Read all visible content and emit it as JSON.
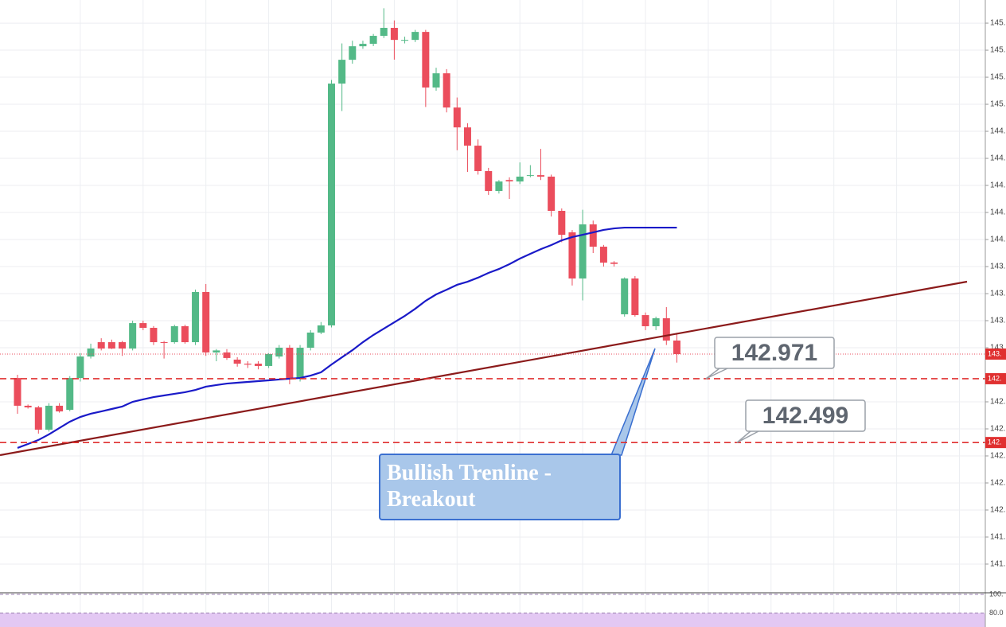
{
  "chart_data": {
    "type": "candlestick",
    "categories": [
      null,
      null,
      null,
      null,
      null,
      null,
      null,
      null,
      null,
      null,
      null,
      null,
      null,
      null,
      null,
      null,
      null,
      null,
      null,
      null,
      null,
      null,
      null,
      null,
      null,
      null,
      null,
      null,
      null,
      null,
      null,
      null,
      null,
      null,
      null,
      null,
      null,
      null,
      null,
      null,
      null,
      null,
      null,
      null,
      null,
      null,
      null,
      null,
      null,
      null,
      null,
      null,
      null,
      null,
      null,
      null,
      null,
      null,
      null,
      null,
      null,
      null,
      null,
      null
    ],
    "open": [
      142.976,
      142.771,
      142.759,
      142.594,
      142.771,
      142.741,
      142.976,
      143.135,
      143.241,
      143.241,
      143.241,
      143.194,
      143.382,
      143.347,
      143.241,
      143.241,
      143.359,
      143.241,
      143.612,
      143.165,
      143.165,
      143.112,
      143.082,
      143.082,
      143.065,
      143.135,
      143.2,
      142.971,
      143.2,
      143.312,
      143.365,
      145.153,
      145.329,
      145.429,
      145.447,
      145.506,
      145.565,
      145.47,
      145.476,
      145.535,
      145.124,
      145.229,
      144.976,
      144.829,
      144.694,
      144.506,
      144.359,
      144.44,
      144.429,
      144.47,
      144.476,
      144.465,
      144.212,
      144.053,
      143.712,
      144.112,
      143.947,
      143.83,
      143.447,
      143.712,
      143.441,
      143.359,
      143.418,
      143.253
    ],
    "high": [
      143.0,
      142.78,
      142.77,
      142.79,
      142.79,
      142.99,
      143.16,
      143.23,
      143.27,
      143.26,
      143.25,
      143.4,
      143.4,
      143.36,
      143.25,
      143.37,
      143.37,
      143.63,
      143.671,
      143.19,
      143.19,
      143.13,
      143.1,
      143.1,
      143.16,
      143.22,
      143.22,
      143.22,
      143.33,
      143.39,
      145.18,
      145.45,
      145.47,
      145.47,
      145.52,
      145.71,
      145.62,
      145.5,
      145.55,
      145.55,
      145.27,
      145.26,
      145.05,
      144.86,
      144.74,
      144.53,
      144.44,
      144.46,
      144.57,
      144.55,
      144.67,
      144.48,
      144.23,
      144.07,
      144.22,
      144.14,
      143.96,
      143.84,
      143.72,
      143.73,
      143.46,
      143.43,
      143.5,
      143.31
    ],
    "low": [
      142.712,
      142.75,
      142.565,
      142.58,
      142.72,
      142.73,
      142.95,
      143.12,
      143.18,
      143.19,
      143.14,
      143.18,
      143.33,
      143.22,
      143.12,
      143.23,
      143.23,
      143.22,
      143.14,
      143.1,
      143.11,
      143.06,
      143.05,
      143.04,
      143.05,
      143.12,
      142.93,
      142.95,
      143.18,
      143.3,
      143.35,
      144.95,
      145.3,
      145.41,
      145.43,
      145.49,
      145.33,
      145.45,
      145.46,
      144.98,
      145.1,
      144.94,
      144.66,
      144.5,
      144.48,
      144.33,
      144.34,
      144.3,
      144.41,
      144.46,
      144.44,
      144.17,
      143.98,
      143.66,
      143.55,
      143.9,
      143.8,
      143.8,
      143.43,
      143.43,
      143.33,
      143.33,
      143.22,
      143.09
    ],
    "close": [
      142.771,
      142.759,
      142.594,
      142.771,
      142.729,
      142.976,
      143.135,
      143.194,
      143.194,
      143.194,
      143.194,
      143.382,
      143.347,
      143.241,
      143.235,
      143.359,
      143.241,
      143.612,
      143.165,
      143.18,
      143.124,
      143.082,
      143.075,
      143.065,
      143.153,
      143.2,
      142.971,
      143.2,
      143.312,
      143.365,
      145.153,
      145.329,
      145.429,
      145.447,
      145.506,
      145.565,
      145.476,
      145.476,
      145.535,
      145.124,
      145.229,
      144.976,
      144.829,
      144.694,
      144.506,
      144.359,
      144.429,
      144.43,
      144.465,
      144.476,
      144.465,
      144.212,
      144.035,
      143.712,
      144.112,
      143.947,
      143.829,
      143.82,
      143.712,
      143.441,
      143.359,
      143.418,
      143.253,
      143.153
    ],
    "up_color": "#53b987",
    "down_color": "#eb4d5c",
    "moving_average": {
      "color": "#1a1ac8",
      "values": [
        142.459,
        142.488,
        142.518,
        142.559,
        142.606,
        142.653,
        142.688,
        142.712,
        142.729,
        142.747,
        142.765,
        142.8,
        142.818,
        142.835,
        142.847,
        142.859,
        142.871,
        142.888,
        142.912,
        142.924,
        142.935,
        142.941,
        142.947,
        142.953,
        142.959,
        142.965,
        142.971,
        142.976,
        142.994,
        143.018,
        143.076,
        143.129,
        143.182,
        143.241,
        143.294,
        143.341,
        143.388,
        143.435,
        143.488,
        143.547,
        143.594,
        143.629,
        143.665,
        143.688,
        143.718,
        143.753,
        143.782,
        143.818,
        143.859,
        143.894,
        143.929,
        143.959,
        143.994,
        144.018,
        144.035,
        144.053,
        144.071,
        144.082,
        144.088,
        144.088,
        144.088,
        144.088,
        144.088,
        144.088
      ]
    },
    "ylim": [
      141.388,
      145.771
    ],
    "yticks": [
      {
        "value": 145.6,
        "label": "145."
      },
      {
        "value": 145.4,
        "label": "145."
      },
      {
        "value": 145.2,
        "label": "145."
      },
      {
        "value": 145.0,
        "label": "145."
      },
      {
        "value": 144.8,
        "label": "144."
      },
      {
        "value": 144.6,
        "label": "144."
      },
      {
        "value": 144.4,
        "label": "144."
      },
      {
        "value": 144.2,
        "label": "144."
      },
      {
        "value": 144.0,
        "label": "144."
      },
      {
        "value": 143.8,
        "label": "143."
      },
      {
        "value": 143.6,
        "label": "143."
      },
      {
        "value": 143.4,
        "label": "143."
      },
      {
        "value": 143.2,
        "label": "143."
      },
      {
        "value": 142.8,
        "label": "142."
      },
      {
        "value": 142.6,
        "label": "142."
      },
      {
        "value": 142.4,
        "label": "142."
      },
      {
        "value": 142.2,
        "label": "142."
      },
      {
        "value": 142.0,
        "label": "142."
      },
      {
        "value": 141.8,
        "label": "141."
      },
      {
        "value": 141.6,
        "label": "141."
      }
    ],
    "grid": true,
    "levels": [
      142.971,
      142.499
    ],
    "level_color": "#e03030",
    "price_tags": [
      {
        "value": 143.153,
        "label": "143."
      },
      {
        "value": 142.971,
        "label": "142."
      },
      {
        "value": 142.499,
        "label": "142."
      }
    ],
    "annotation": "Bullish Trenline - Breakout",
    "oscillator": {
      "ylim": [
        65,
        100.8
      ],
      "yticks": [
        {
          "value": 100,
          "label": "100."
        },
        {
          "value": 80,
          "label": "80.0"
        }
      ],
      "band_color": "#e3c8f3"
    }
  }
}
